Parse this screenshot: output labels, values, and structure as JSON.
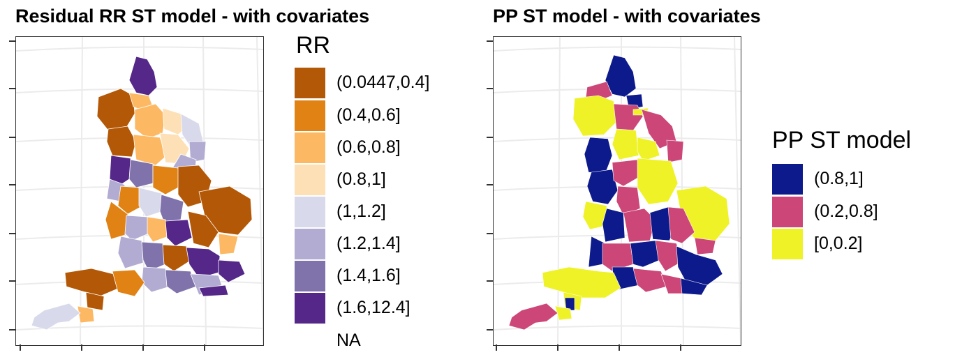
{
  "left_map": {
    "title": "Residual RR ST model - with covariates",
    "legend": {
      "title": "RR",
      "items": [
        {
          "label": "(0.0447,0.4]",
          "color": "#b35806"
        },
        {
          "label": "(0.4,0.6]",
          "color": "#e08214"
        },
        {
          "label": "(0.6,0.8]",
          "color": "#fdb863"
        },
        {
          "label": "(0.8,1]",
          "color": "#fee0b6"
        },
        {
          "label": "(1,1.2]",
          "color": "#d8daeb"
        },
        {
          "label": "(1.2,1.4]",
          "color": "#b2abd2"
        },
        {
          "label": "(1.4,1.6]",
          "color": "#8073ac"
        },
        {
          "label": "(1.6,12.4]",
          "color": "#542788"
        }
      ],
      "na_label": "NA"
    }
  },
  "right_map": {
    "title": "PP ST model - with covariates",
    "legend": {
      "title": "PP ST model",
      "items": [
        {
          "label": "(0.8,1]",
          "color": "#0d1a8c"
        },
        {
          "label": "(0.2,0.8]",
          "color": "#cc4778"
        },
        {
          "label": "[0,0.2]",
          "color": "#eef226"
        }
      ]
    }
  }
}
